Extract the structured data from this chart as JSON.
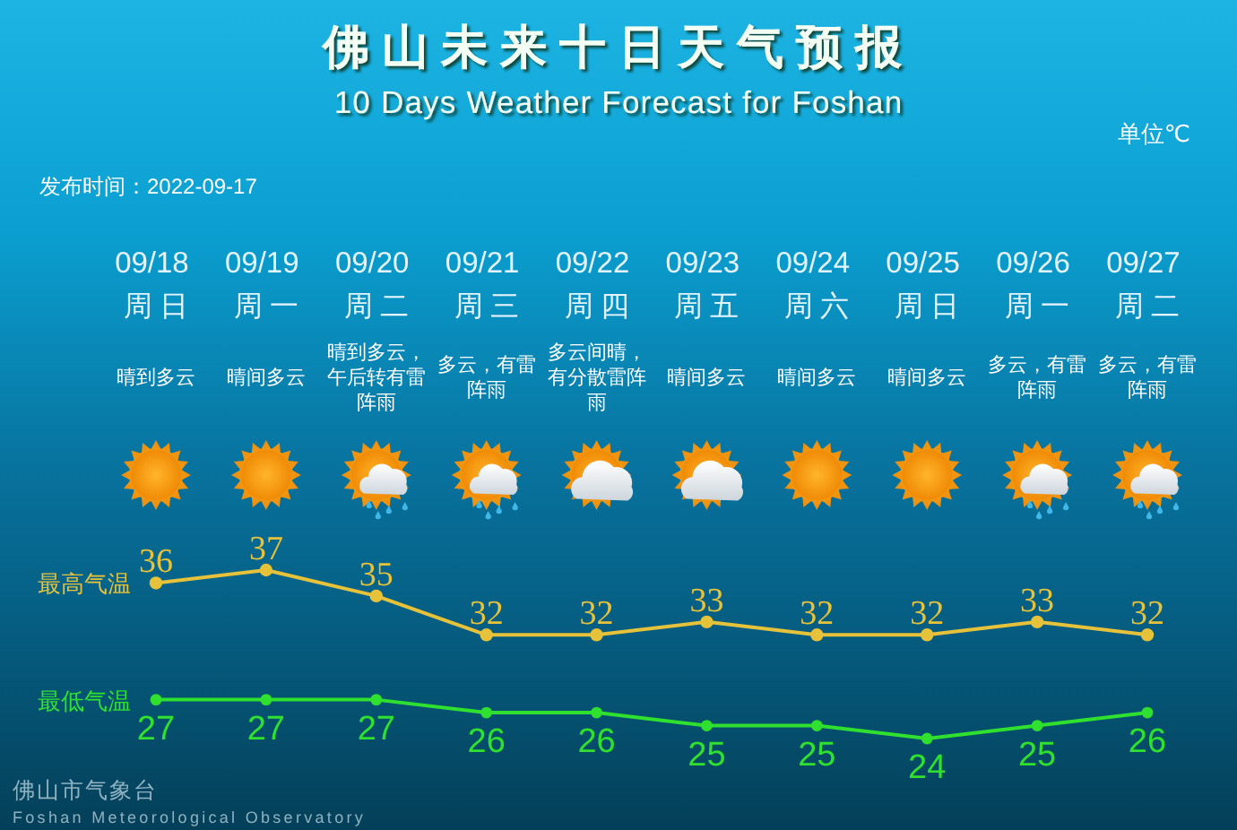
{
  "chart_data": {
    "type": "line",
    "title": "佛山未来十日天气预报",
    "subtitle": "10 Days Weather Forecast for Foshan",
    "categories": [
      "09/18\n周日",
      "09/19\n周一",
      "09/20\n周二",
      "09/21\n周三",
      "09/22\n周四",
      "09/23\n周五",
      "09/24\n周六",
      "09/25\n周日",
      "09/26\n周一",
      "09/27\n周二"
    ],
    "series": [
      {
        "name": "最高气温",
        "color": "#e6c23a",
        "values": [
          36,
          37,
          35,
          32,
          32,
          33,
          32,
          32,
          33,
          32
        ]
      },
      {
        "name": "最低气温",
        "color": "#2fe02f",
        "values": [
          27,
          27,
          27,
          26,
          26,
          25,
          25,
          24,
          25,
          26
        ]
      }
    ],
    "data_labels": true,
    "marker": "circle",
    "annotations": [
      "单位℃",
      "发布时间：2022-09-17",
      "佛山市气象台",
      "Foshan Meteorological Observatory",
      "晴到多云",
      "晴间多云",
      "晴到多云，午后转有雷阵雨",
      "多云，有雷阵雨",
      "多云间晴，有分散雷阵雨",
      "晴间多云",
      "晴间多云",
      "晴间多云",
      "多云，有雷阵雨",
      "多云，有雷阵雨"
    ]
  }
}
